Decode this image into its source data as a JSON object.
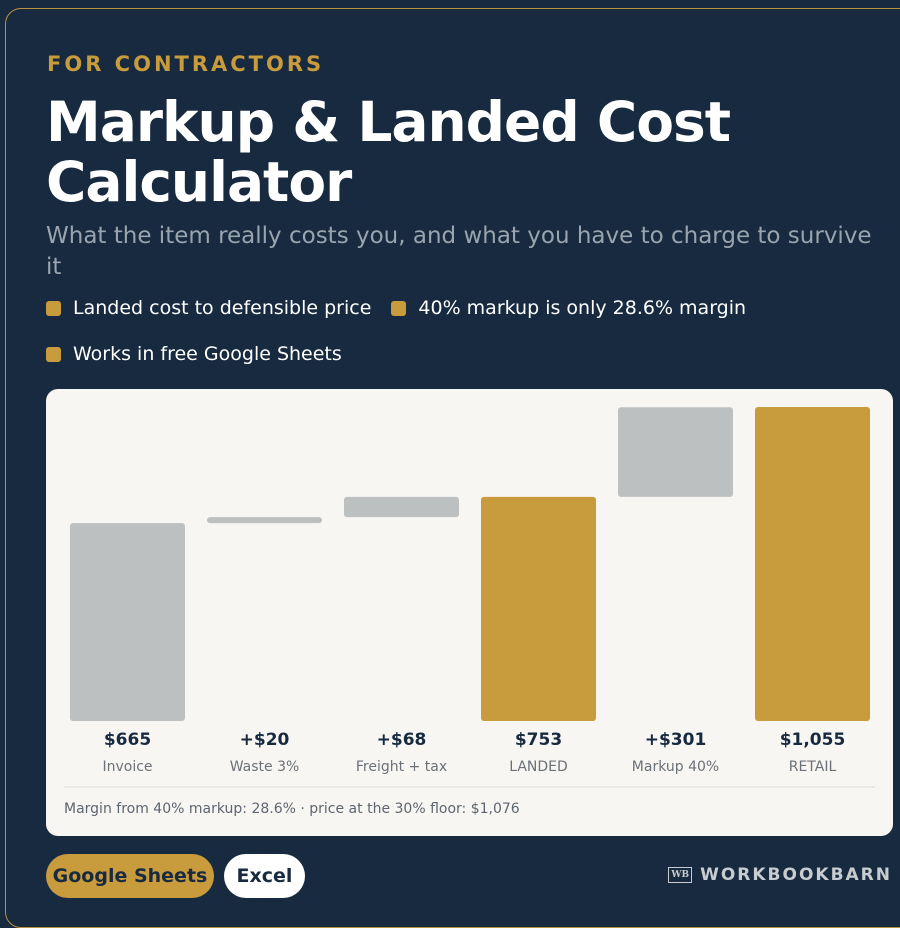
{
  "header": {
    "eyebrow": "FOR CONTRACTORS",
    "title": "Markup & Landed Cost Calculator",
    "subtitle": "What the item really costs you, and what you have to charge to survive it"
  },
  "bullets": [
    "Landed cost to defensible price",
    "40% markup is only 28.6% margin",
    "Works in free Google Sheets"
  ],
  "chart_data": {
    "type": "waterfall",
    "categories": [
      "Invoice",
      "Waste 3%",
      "Freight + tax",
      "LANDED",
      "Markup 40%",
      "RETAIL"
    ],
    "values": [
      665,
      20,
      68,
      753,
      301,
      1055
    ],
    "value_labels": [
      "$665",
      "+$20",
      "+$68",
      "$753",
      "+$301",
      "$1,055"
    ],
    "measures": [
      "absolute",
      "relative",
      "relative",
      "total",
      "relative",
      "total"
    ],
    "colors": [
      "#bcc0c1",
      "#bcc0c1",
      "#bcc0c1",
      "#c89b3c",
      "#bcc0c1",
      "#c89b3c"
    ]
  },
  "footnote": "Margin from 40% markup: 28.6% · price at the 30% floor: $1,076",
  "buttons": [
    "Google Sheets",
    "Excel"
  ],
  "brand": {
    "logo": "WB",
    "name": "WORKBOOKBARN"
  }
}
